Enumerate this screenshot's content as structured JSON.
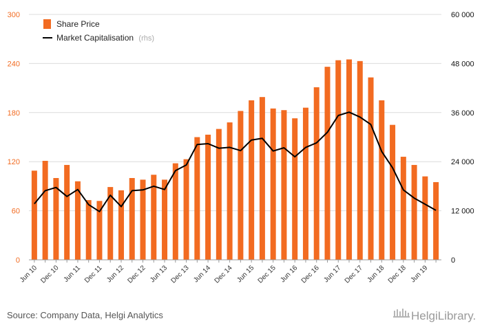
{
  "chart_data": {
    "type": "bar",
    "categories": [
      "Jun 10",
      "Sep 10",
      "Dec 10",
      "Mar 11",
      "Jun 11",
      "Sep 11",
      "Dec 11",
      "Mar 12",
      "Jun 12",
      "Sep 12",
      "Dec 12",
      "Mar 13",
      "Jun 13",
      "Sep 13",
      "Dec 13",
      "Mar 14",
      "Jun 14",
      "Sep 14",
      "Dec 14",
      "Mar 15",
      "Jun 15",
      "Sep 15",
      "Dec 15",
      "Mar 16",
      "Jun 16",
      "Sep 16",
      "Dec 16",
      "Mar 17",
      "Jun 17",
      "Sep 17",
      "Dec 17",
      "Mar 18",
      "Jun 18",
      "Sep 18",
      "Dec 18",
      "Mar 19",
      "Jun 19",
      "Sep 19"
    ],
    "x_tick_labels": [
      "Jun 10",
      "Dec 10",
      "Jun 11",
      "Dec 11",
      "Jun 12",
      "Dec 12",
      "Jun 13",
      "Dec 13",
      "Jun 14",
      "Dec 14",
      "Jun 15",
      "Dec 15",
      "Jun 16",
      "Dec 16",
      "Jun 17",
      "Dec 17",
      "Jun 18",
      "Dec 18",
      "Jun 19"
    ],
    "series": [
      {
        "name": "Share Price",
        "type": "bar",
        "axis": "left",
        "color": "#f26b21",
        "values": [
          109,
          121,
          100,
          116,
          96,
          73,
          72,
          89,
          85,
          100,
          98,
          104,
          98,
          118,
          123,
          150,
          153,
          160,
          168,
          182,
          195,
          199,
          185,
          183,
          173,
          186,
          211,
          236,
          244,
          245,
          243,
          223,
          195,
          165,
          126,
          116,
          102,
          95
        ]
      },
      {
        "name": "Market Capitalisation",
        "name_suffix": "(rhs)",
        "type": "line",
        "axis": "right",
        "color": "#000000",
        "values": [
          13700,
          16900,
          17700,
          15500,
          17200,
          13500,
          11800,
          15800,
          13000,
          16900,
          17100,
          18000,
          17200,
          21800,
          23200,
          28200,
          28400,
          27300,
          27500,
          26700,
          29300,
          29700,
          26600,
          27400,
          25200,
          27500,
          28600,
          31200,
          35300,
          36100,
          34900,
          33100,
          26500,
          22500,
          17100,
          15100,
          13600,
          12100
        ]
      }
    ],
    "y_left": {
      "min": 0,
      "max": 300,
      "ticks": [
        "0",
        "60",
        "120",
        "180",
        "240",
        "300"
      ],
      "tick_color": "#f26b21"
    },
    "y_right": {
      "min": 0,
      "max": 60000,
      "ticks": [
        "0",
        "12 000",
        "24 000",
        "36 000",
        "48 000",
        "60 000"
      ],
      "tick_color": "#111111"
    },
    "grid": true,
    "legend_position": "top-left",
    "title": "",
    "xlabel": "",
    "ylabel": ""
  },
  "legend": {
    "share_price_label": "Share Price",
    "market_cap_label": "Market Capitalisation",
    "market_cap_suffix": "(rhs)"
  },
  "footer": {
    "source": "Source: Company Data, Helgi Analytics",
    "brand": "HelgiLibrary."
  }
}
